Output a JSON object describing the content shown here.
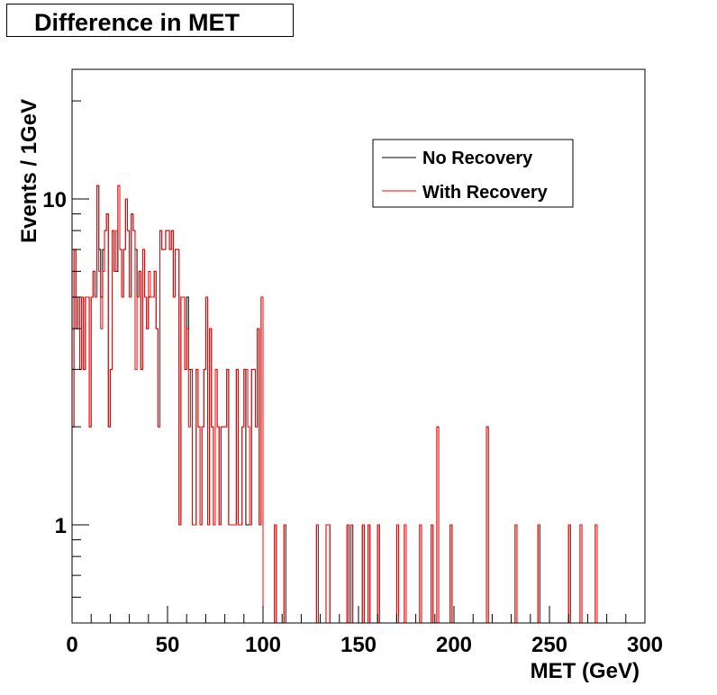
{
  "chart_data": {
    "type": "histogram",
    "title": "Difference in MET",
    "xlabel": "MET (GeV)",
    "ylabel": "Events / 1GeV",
    "xlim": [
      0,
      300
    ],
    "ylim": [
      0.5,
      25
    ],
    "yscale": "log",
    "xticks": [
      "0",
      "50",
      "100",
      "150",
      "200",
      "250",
      "300"
    ],
    "yticks": [
      "1",
      "10"
    ],
    "grid": false,
    "legend_position": "top-right",
    "bin_width": 1,
    "series": [
      {
        "name": "No Recovery",
        "color": "#000000",
        "values": [
          2,
          7,
          4,
          5,
          3,
          5,
          3,
          5,
          5,
          2,
          5,
          6,
          5,
          11,
          7,
          5,
          7,
          8,
          9,
          2,
          3,
          8,
          6,
          6,
          11,
          7,
          5,
          7,
          10,
          8,
          5,
          9,
          8,
          7,
          5,
          6,
          3,
          7,
          5,
          4,
          5,
          5,
          5,
          6,
          4,
          2,
          8,
          7,
          7,
          8,
          8,
          7,
          8,
          5,
          7,
          7,
          1,
          5,
          5,
          3,
          5,
          3,
          3,
          1,
          1,
          3,
          2,
          1,
          2,
          3,
          5,
          1,
          4,
          2,
          1,
          3,
          2,
          1,
          2,
          2,
          2,
          3,
          1,
          1,
          1,
          1,
          3,
          1,
          1,
          2,
          3,
          1,
          1,
          1,
          3,
          3,
          2,
          4,
          1,
          5,
          0,
          0,
          0,
          0,
          0,
          0,
          1,
          0,
          0,
          0,
          0,
          1,
          0,
          0,
          0,
          0,
          0,
          0,
          0,
          0,
          0,
          0,
          0,
          0,
          0,
          0,
          0,
          0,
          1,
          0,
          0,
          0,
          0,
          1,
          1,
          0,
          0,
          0,
          0,
          0,
          0,
          0,
          0,
          0,
          1,
          0,
          1,
          0,
          0,
          0,
          0,
          0,
          1,
          0,
          0,
          1,
          0,
          0,
          0,
          0,
          1,
          0,
          0,
          0,
          0,
          0,
          0,
          0,
          0,
          0,
          1,
          0,
          0,
          0,
          1,
          0,
          0,
          0,
          0,
          0,
          0,
          0,
          1,
          0,
          0,
          0,
          0,
          0,
          1,
          0,
          0,
          2,
          0,
          0,
          0,
          0,
          0,
          0,
          1,
          0,
          0,
          0,
          0,
          0,
          0,
          0,
          0,
          0,
          0,
          0,
          0,
          0,
          0,
          0,
          0,
          0,
          0,
          2,
          0,
          0,
          0,
          0,
          0,
          0,
          0,
          0,
          0,
          0,
          0,
          0,
          0,
          0,
          1,
          0,
          0,
          0,
          0,
          0,
          0,
          0,
          0,
          0,
          0,
          0,
          1,
          0,
          0,
          0,
          0,
          0,
          0,
          0,
          0,
          0,
          0,
          0,
          0,
          0,
          0,
          0,
          1,
          0,
          0,
          0,
          0,
          0,
          1,
          0,
          0,
          0,
          0,
          0,
          0,
          0,
          1,
          0,
          0,
          0,
          0,
          0,
          0,
          0,
          0,
          0,
          0,
          0,
          0,
          0,
          0,
          0,
          0,
          0,
          0,
          0
        ]
      },
      {
        "name": "With Recovery",
        "color": "#ff0000",
        "values": [
          2,
          7,
          4,
          5,
          3,
          5,
          3,
          5,
          5,
          2,
          5,
          6,
          5,
          11,
          6,
          4,
          6,
          8,
          9,
          2,
          3,
          8,
          6,
          8,
          11,
          7,
          5,
          7,
          10,
          8,
          5,
          9,
          8,
          3,
          5,
          6,
          3,
          7,
          5,
          4,
          6,
          5,
          5,
          6,
          4,
          2,
          8,
          7,
          7,
          8,
          8,
          7,
          8,
          5,
          7,
          7,
          1,
          5,
          5,
          3,
          4,
          2,
          3,
          1,
          1,
          3,
          2,
          1,
          2,
          3,
          5,
          1,
          4,
          2,
          1,
          3,
          2,
          1,
          2,
          2,
          2,
          3,
          1,
          1,
          1,
          1,
          3,
          1,
          1,
          2,
          3,
          3,
          2,
          1,
          3,
          3,
          2,
          4,
          1,
          5,
          0,
          0,
          0,
          0,
          0,
          0,
          1,
          0,
          0,
          0,
          0,
          1,
          0,
          0,
          0,
          0,
          0,
          0,
          0,
          0,
          0,
          0,
          0,
          0,
          0,
          0,
          0,
          0,
          1,
          0,
          0,
          0,
          0,
          1,
          1,
          0,
          0,
          0,
          0,
          0,
          0,
          0,
          0,
          0,
          1,
          0,
          1,
          0,
          0,
          0,
          0,
          0,
          1,
          0,
          0,
          1,
          0,
          0,
          0,
          0,
          1,
          0,
          0,
          0,
          0,
          0,
          0,
          0,
          0,
          0,
          1,
          0,
          0,
          0,
          1,
          0,
          0,
          0,
          0,
          0,
          0,
          0,
          1,
          0,
          0,
          0,
          0,
          0,
          1,
          0,
          0,
          2,
          0,
          0,
          0,
          0,
          0,
          0,
          1,
          0,
          0,
          0,
          0,
          0,
          0,
          0,
          0,
          0,
          0,
          0,
          0,
          0,
          0,
          0,
          0,
          0,
          0,
          2,
          0,
          0,
          0,
          0,
          0,
          0,
          0,
          0,
          0,
          0,
          0,
          0,
          0,
          0,
          1,
          0,
          0,
          0,
          0,
          0,
          0,
          0,
          0,
          0,
          0,
          0,
          1,
          0,
          0,
          0,
          0,
          0,
          0,
          0,
          0,
          0,
          0,
          0,
          0,
          0,
          0,
          0,
          1,
          0,
          0,
          0,
          0,
          0,
          1,
          0,
          0,
          0,
          0,
          0,
          0,
          0,
          1,
          0,
          0,
          0,
          0,
          0,
          0,
          0,
          0,
          0,
          0,
          0,
          0,
          0,
          0,
          0,
          0,
          0,
          0,
          0
        ]
      }
    ]
  }
}
